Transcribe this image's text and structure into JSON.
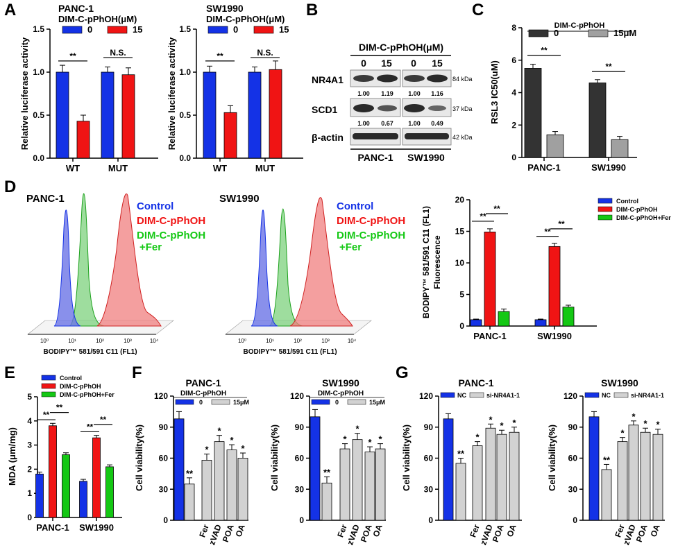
{
  "colors": {
    "blue": "#1432e6",
    "red": "#f01414",
    "green": "#14c814",
    "dark": "#333333",
    "gray": "#a0a0a0",
    "light": "#d2d2d2",
    "blot": "#555555"
  },
  "panels": {
    "A": "A",
    "B": "B",
    "C": "C",
    "D": "D",
    "E": "E",
    "F": "F",
    "G": "G"
  },
  "panelB": {
    "treatment": "DIM-C-pPhOH(μM)",
    "doses": [
      "0",
      "15",
      "0",
      "15"
    ],
    "rows": [
      {
        "label": "NR4A1",
        "kda": "84 kDa",
        "quant": [
          "1.00",
          "1.19",
          "1.00",
          "1.16"
        ]
      },
      {
        "label": "SCD1",
        "kda": "37 kDa",
        "quant": [
          "1.00",
          "0.67",
          "1.00",
          "0.49"
        ]
      },
      {
        "label": "β-actin",
        "kda": "42 kDa",
        "quant": null
      }
    ],
    "cells": [
      "PANC-1",
      "SW1990"
    ]
  },
  "panelD_flow": {
    "xlabel": "BODIPY™ 581/591 C11 (FL1)",
    "ticks": [
      "10⁰",
      "10¹",
      "10²",
      "10³",
      "10⁴"
    ],
    "legend": [
      "Control",
      "DIM-C-pPhOH",
      "DIM-C-pPhOH",
      "+Fer"
    ],
    "titles": [
      "PANC-1",
      "SW1990"
    ]
  },
  "chart_data": [
    {
      "panel": "A",
      "type": "bar",
      "title": "PANC-1",
      "legend_title": "DIM-C-pPhOH(μM)",
      "ylabel": "Relative luciferase activity",
      "categories": [
        "WT",
        "MUT"
      ],
      "ylim": [
        0,
        1.5
      ],
      "yticks": [
        "0.0",
        "0.5",
        "1.0",
        "1.5"
      ],
      "series": [
        {
          "name": "0",
          "values": [
            1.0,
            1.0
          ],
          "err": [
            0.08,
            0.06
          ],
          "color": "#1432e6"
        },
        {
          "name": "15",
          "values": [
            0.43,
            0.97
          ],
          "err": [
            0.07,
            0.08
          ],
          "color": "#f01414"
        }
      ],
      "annotations": [
        "**",
        "N.S."
      ]
    },
    {
      "panel": "A",
      "type": "bar",
      "title": "SW1990",
      "legend_title": "DIM-C-pPhOH(μM)",
      "ylabel": "Relative luciferase activity",
      "categories": [
        "WT",
        "MUT"
      ],
      "ylim": [
        0,
        1.5
      ],
      "yticks": [
        "0.0",
        "0.5",
        "1.0",
        "1.5"
      ],
      "series": [
        {
          "name": "0",
          "values": [
            1.0,
            1.0
          ],
          "err": [
            0.07,
            0.06
          ],
          "color": "#1432e6"
        },
        {
          "name": "15",
          "values": [
            0.53,
            1.03
          ],
          "err": [
            0.08,
            0.1
          ],
          "color": "#f01414"
        }
      ],
      "annotations": [
        "**",
        "N.S."
      ]
    },
    {
      "panel": "C",
      "type": "bar",
      "title": "",
      "legend_title": "DIM-C-pPhOH",
      "ylabel": "RSL3 IC50(uM)",
      "categories": [
        "PANC-1",
        "SW1990"
      ],
      "ylim": [
        0,
        8
      ],
      "yticks": [
        "0",
        "2",
        "4",
        "6",
        "8"
      ],
      "series": [
        {
          "name": "0",
          "values": [
            5.5,
            4.6
          ],
          "err": [
            0.25,
            0.2
          ],
          "color": "#333333"
        },
        {
          "name": "15μM",
          "values": [
            1.4,
            1.1
          ],
          "err": [
            0.2,
            0.2
          ],
          "color": "#a0a0a0"
        }
      ],
      "annotations": [
        "**",
        "**"
      ]
    },
    {
      "panel": "D",
      "type": "bar",
      "title": "",
      "ylabel": "BODIPY™ 581/591 C11 (FL1) Fluorescence",
      "categories": [
        "PANC-1",
        "SW1990"
      ],
      "ylim": [
        0,
        20
      ],
      "yticks": [
        "0",
        "5",
        "10",
        "15",
        "20"
      ],
      "series": [
        {
          "name": "Control",
          "values": [
            1.0,
            1.0
          ],
          "err": [
            0.1,
            0.1
          ],
          "color": "#1432e6"
        },
        {
          "name": "DIM-C-pPhOH",
          "values": [
            14.9,
            12.6
          ],
          "err": [
            0.5,
            0.5
          ],
          "color": "#f01414"
        },
        {
          "name": "DIM-C-pPhOH+Fer",
          "values": [
            2.3,
            3.0
          ],
          "err": [
            0.4,
            0.3
          ],
          "color": "#14c814"
        }
      ],
      "annotations": [
        "**",
        "**",
        "**",
        "**"
      ]
    },
    {
      "panel": "E",
      "type": "bar",
      "title": "",
      "ylabel": "MDA (μm/mg)",
      "categories": [
        "PANC-1",
        "SW1990"
      ],
      "ylim": [
        0,
        5
      ],
      "yticks": [
        "0",
        "1",
        "2",
        "3",
        "4",
        "5"
      ],
      "series": [
        {
          "name": "Control",
          "values": [
            1.8,
            1.5
          ],
          "err": [
            0.08,
            0.08
          ],
          "color": "#1432e6"
        },
        {
          "name": "DIM-C-pPhOH",
          "values": [
            3.8,
            3.3
          ],
          "err": [
            0.1,
            0.1
          ],
          "color": "#f01414"
        },
        {
          "name": "DIM-C-pPhOH+Fer",
          "values": [
            2.6,
            2.1
          ],
          "err": [
            0.08,
            0.08
          ],
          "color": "#14c814"
        }
      ],
      "annotations": [
        "**",
        "**",
        "**",
        "**"
      ]
    },
    {
      "panel": "F",
      "type": "bar",
      "title": "PANC-1",
      "legend_title": "DIM-C-pPhOH",
      "ylabel": "Cell viability(%)",
      "legend": [
        "0",
        "15μM"
      ],
      "categories": [
        "",
        "",
        "Fer",
        "zVAD",
        "POA",
        "OA"
      ],
      "ylim": [
        0,
        120
      ],
      "yticks": [
        "0",
        "30",
        "60",
        "90",
        "120"
      ],
      "values": [
        98,
        35,
        58,
        76,
        68,
        60
      ],
      "err": [
        7,
        6,
        6,
        6,
        5,
        5
      ],
      "marks": [
        "",
        "**",
        "*",
        "*",
        "*",
        "*"
      ],
      "colors": [
        "#1432e6",
        "#d2d2d2",
        "#d2d2d2",
        "#d2d2d2",
        "#d2d2d2",
        "#d2d2d2"
      ]
    },
    {
      "panel": "F",
      "type": "bar",
      "title": "SW1990",
      "legend_title": "DIM-C-pPhOH",
      "ylabel": "Cell viability(%)",
      "legend": [
        "0",
        "15μM"
      ],
      "categories": [
        "",
        "",
        "Fer",
        "zVAD",
        "POA",
        "OA"
      ],
      "ylim": [
        0,
        120
      ],
      "yticks": [
        "0",
        "30",
        "60",
        "90",
        "120"
      ],
      "values": [
        100,
        36,
        69,
        78,
        66,
        69
      ],
      "err": [
        7,
        6,
        5,
        6,
        5,
        5
      ],
      "marks": [
        "",
        "**",
        "*",
        "*",
        "*",
        "*"
      ],
      "colors": [
        "#1432e6",
        "#d2d2d2",
        "#d2d2d2",
        "#d2d2d2",
        "#d2d2d2",
        "#d2d2d2"
      ]
    },
    {
      "panel": "G",
      "type": "bar",
      "title": "PANC-1",
      "ylabel": "Cell viability(%)",
      "legend": [
        "NC",
        "si-NR4A1-1"
      ],
      "categories": [
        "",
        "",
        "Fer",
        "zVAD",
        "POA",
        "OA"
      ],
      "ylim": [
        0,
        120
      ],
      "yticks": [
        "0",
        "30",
        "60",
        "90",
        "120"
      ],
      "values": [
        98,
        55,
        72,
        89,
        83,
        85
      ],
      "err": [
        5,
        5,
        4,
        4,
        4,
        5
      ],
      "marks": [
        "",
        "**",
        "*",
        "*",
        "*",
        "*"
      ],
      "colors": [
        "#1432e6",
        "#d2d2d2",
        "#d2d2d2",
        "#d2d2d2",
        "#d2d2d2",
        "#d2d2d2"
      ]
    },
    {
      "panel": "G",
      "type": "bar",
      "title": "SW1990",
      "ylabel": "Cell viability(%)",
      "legend": [
        "NC",
        "si-NR4A1-1"
      ],
      "categories": [
        "",
        "",
        "Fer",
        "zVAD",
        "POA",
        "OA"
      ],
      "ylim": [
        0,
        120
      ],
      "yticks": [
        "0",
        "30",
        "60",
        "90",
        "120"
      ],
      "values": [
        100,
        49,
        76,
        92,
        85,
        83
      ],
      "err": [
        5,
        5,
        4,
        4,
        4,
        5
      ],
      "marks": [
        "",
        "**",
        "*",
        "*",
        "*",
        "*"
      ],
      "colors": [
        "#1432e6",
        "#d2d2d2",
        "#d2d2d2",
        "#d2d2d2",
        "#d2d2d2",
        "#d2d2d2"
      ]
    }
  ]
}
